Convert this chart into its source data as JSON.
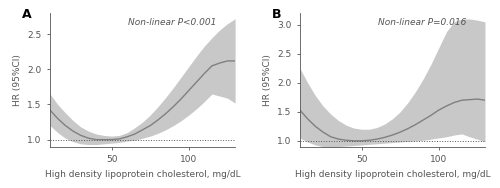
{
  "panel_A": {
    "label": "A",
    "annotation": "Non-linear P<0.001",
    "ylabel": "HR (95%CI)",
    "xlabel": "High density lipoprotein cholesterol, mg/dL",
    "xlim": [
      10,
      130
    ],
    "ylim": [
      0.9,
      2.8
    ],
    "yticks": [
      1.0,
      1.5,
      2.0,
      2.5
    ],
    "xticks": [
      50,
      100
    ],
    "hline_y": 1.0,
    "line_color": "#808080",
    "ci_color": "#c8c8c8",
    "curve_x": [
      10,
      15,
      20,
      25,
      30,
      35,
      40,
      45,
      50,
      55,
      60,
      65,
      70,
      75,
      80,
      85,
      90,
      95,
      100,
      105,
      110,
      115,
      120,
      125,
      130
    ],
    "curve_y": [
      1.42,
      1.3,
      1.2,
      1.12,
      1.06,
      1.02,
      1.0,
      1.0,
      1.0,
      1.01,
      1.04,
      1.08,
      1.14,
      1.2,
      1.28,
      1.37,
      1.47,
      1.58,
      1.7,
      1.82,
      1.94,
      2.05,
      2.09,
      2.12,
      2.12
    ],
    "ci_upper": [
      1.65,
      1.5,
      1.38,
      1.27,
      1.18,
      1.12,
      1.08,
      1.06,
      1.05,
      1.06,
      1.1,
      1.17,
      1.25,
      1.35,
      1.47,
      1.6,
      1.74,
      1.89,
      2.04,
      2.19,
      2.33,
      2.45,
      2.56,
      2.65,
      2.72
    ],
    "ci_lower": [
      1.2,
      1.1,
      1.02,
      0.97,
      0.94,
      0.93,
      0.93,
      0.94,
      0.95,
      0.96,
      0.98,
      0.99,
      1.02,
      1.05,
      1.09,
      1.14,
      1.2,
      1.27,
      1.35,
      1.44,
      1.54,
      1.65,
      1.62,
      1.59,
      1.52
    ]
  },
  "panel_B": {
    "label": "B",
    "annotation": "Non-linear P=0.016",
    "ylabel": "HR (95%CI)",
    "xlabel": "High density lipoprotein cholesterol, mg/dL",
    "xlim": [
      10,
      130
    ],
    "ylim": [
      0.9,
      3.2
    ],
    "yticks": [
      1.0,
      1.5,
      2.0,
      2.5,
      3.0
    ],
    "xticks": [
      50,
      100
    ],
    "hline_y": 1.0,
    "line_color": "#808080",
    "ci_color": "#c8c8c8",
    "curve_x": [
      10,
      15,
      20,
      25,
      30,
      35,
      40,
      45,
      50,
      55,
      60,
      65,
      70,
      75,
      80,
      85,
      90,
      95,
      100,
      105,
      110,
      115,
      120,
      125,
      130
    ],
    "curve_y": [
      1.53,
      1.38,
      1.25,
      1.15,
      1.07,
      1.03,
      1.01,
      1.0,
      1.0,
      1.01,
      1.03,
      1.06,
      1.1,
      1.15,
      1.21,
      1.28,
      1.36,
      1.44,
      1.53,
      1.6,
      1.66,
      1.7,
      1.71,
      1.72,
      1.7
    ],
    "ci_upper": [
      2.25,
      2.0,
      1.78,
      1.6,
      1.46,
      1.35,
      1.27,
      1.22,
      1.2,
      1.2,
      1.23,
      1.29,
      1.38,
      1.5,
      1.66,
      1.85,
      2.07,
      2.32,
      2.6,
      2.88,
      3.05,
      3.1,
      3.1,
      3.08,
      3.05
    ],
    "ci_lower": [
      1.05,
      0.98,
      0.93,
      0.9,
      0.89,
      0.9,
      0.91,
      0.92,
      0.93,
      0.94,
      0.95,
      0.96,
      0.97,
      0.98,
      0.99,
      1.0,
      1.01,
      1.03,
      1.05,
      1.07,
      1.1,
      1.12,
      1.07,
      1.03,
      0.98
    ]
  },
  "figure_bg": "#ffffff",
  "axes_bg": "#ffffff",
  "spine_color": "#555555",
  "tick_color": "#555555",
  "label_fontsize": 6.5,
  "annotation_fontsize": 6.5,
  "panel_label_fontsize": 9,
  "tick_fontsize": 6.5
}
